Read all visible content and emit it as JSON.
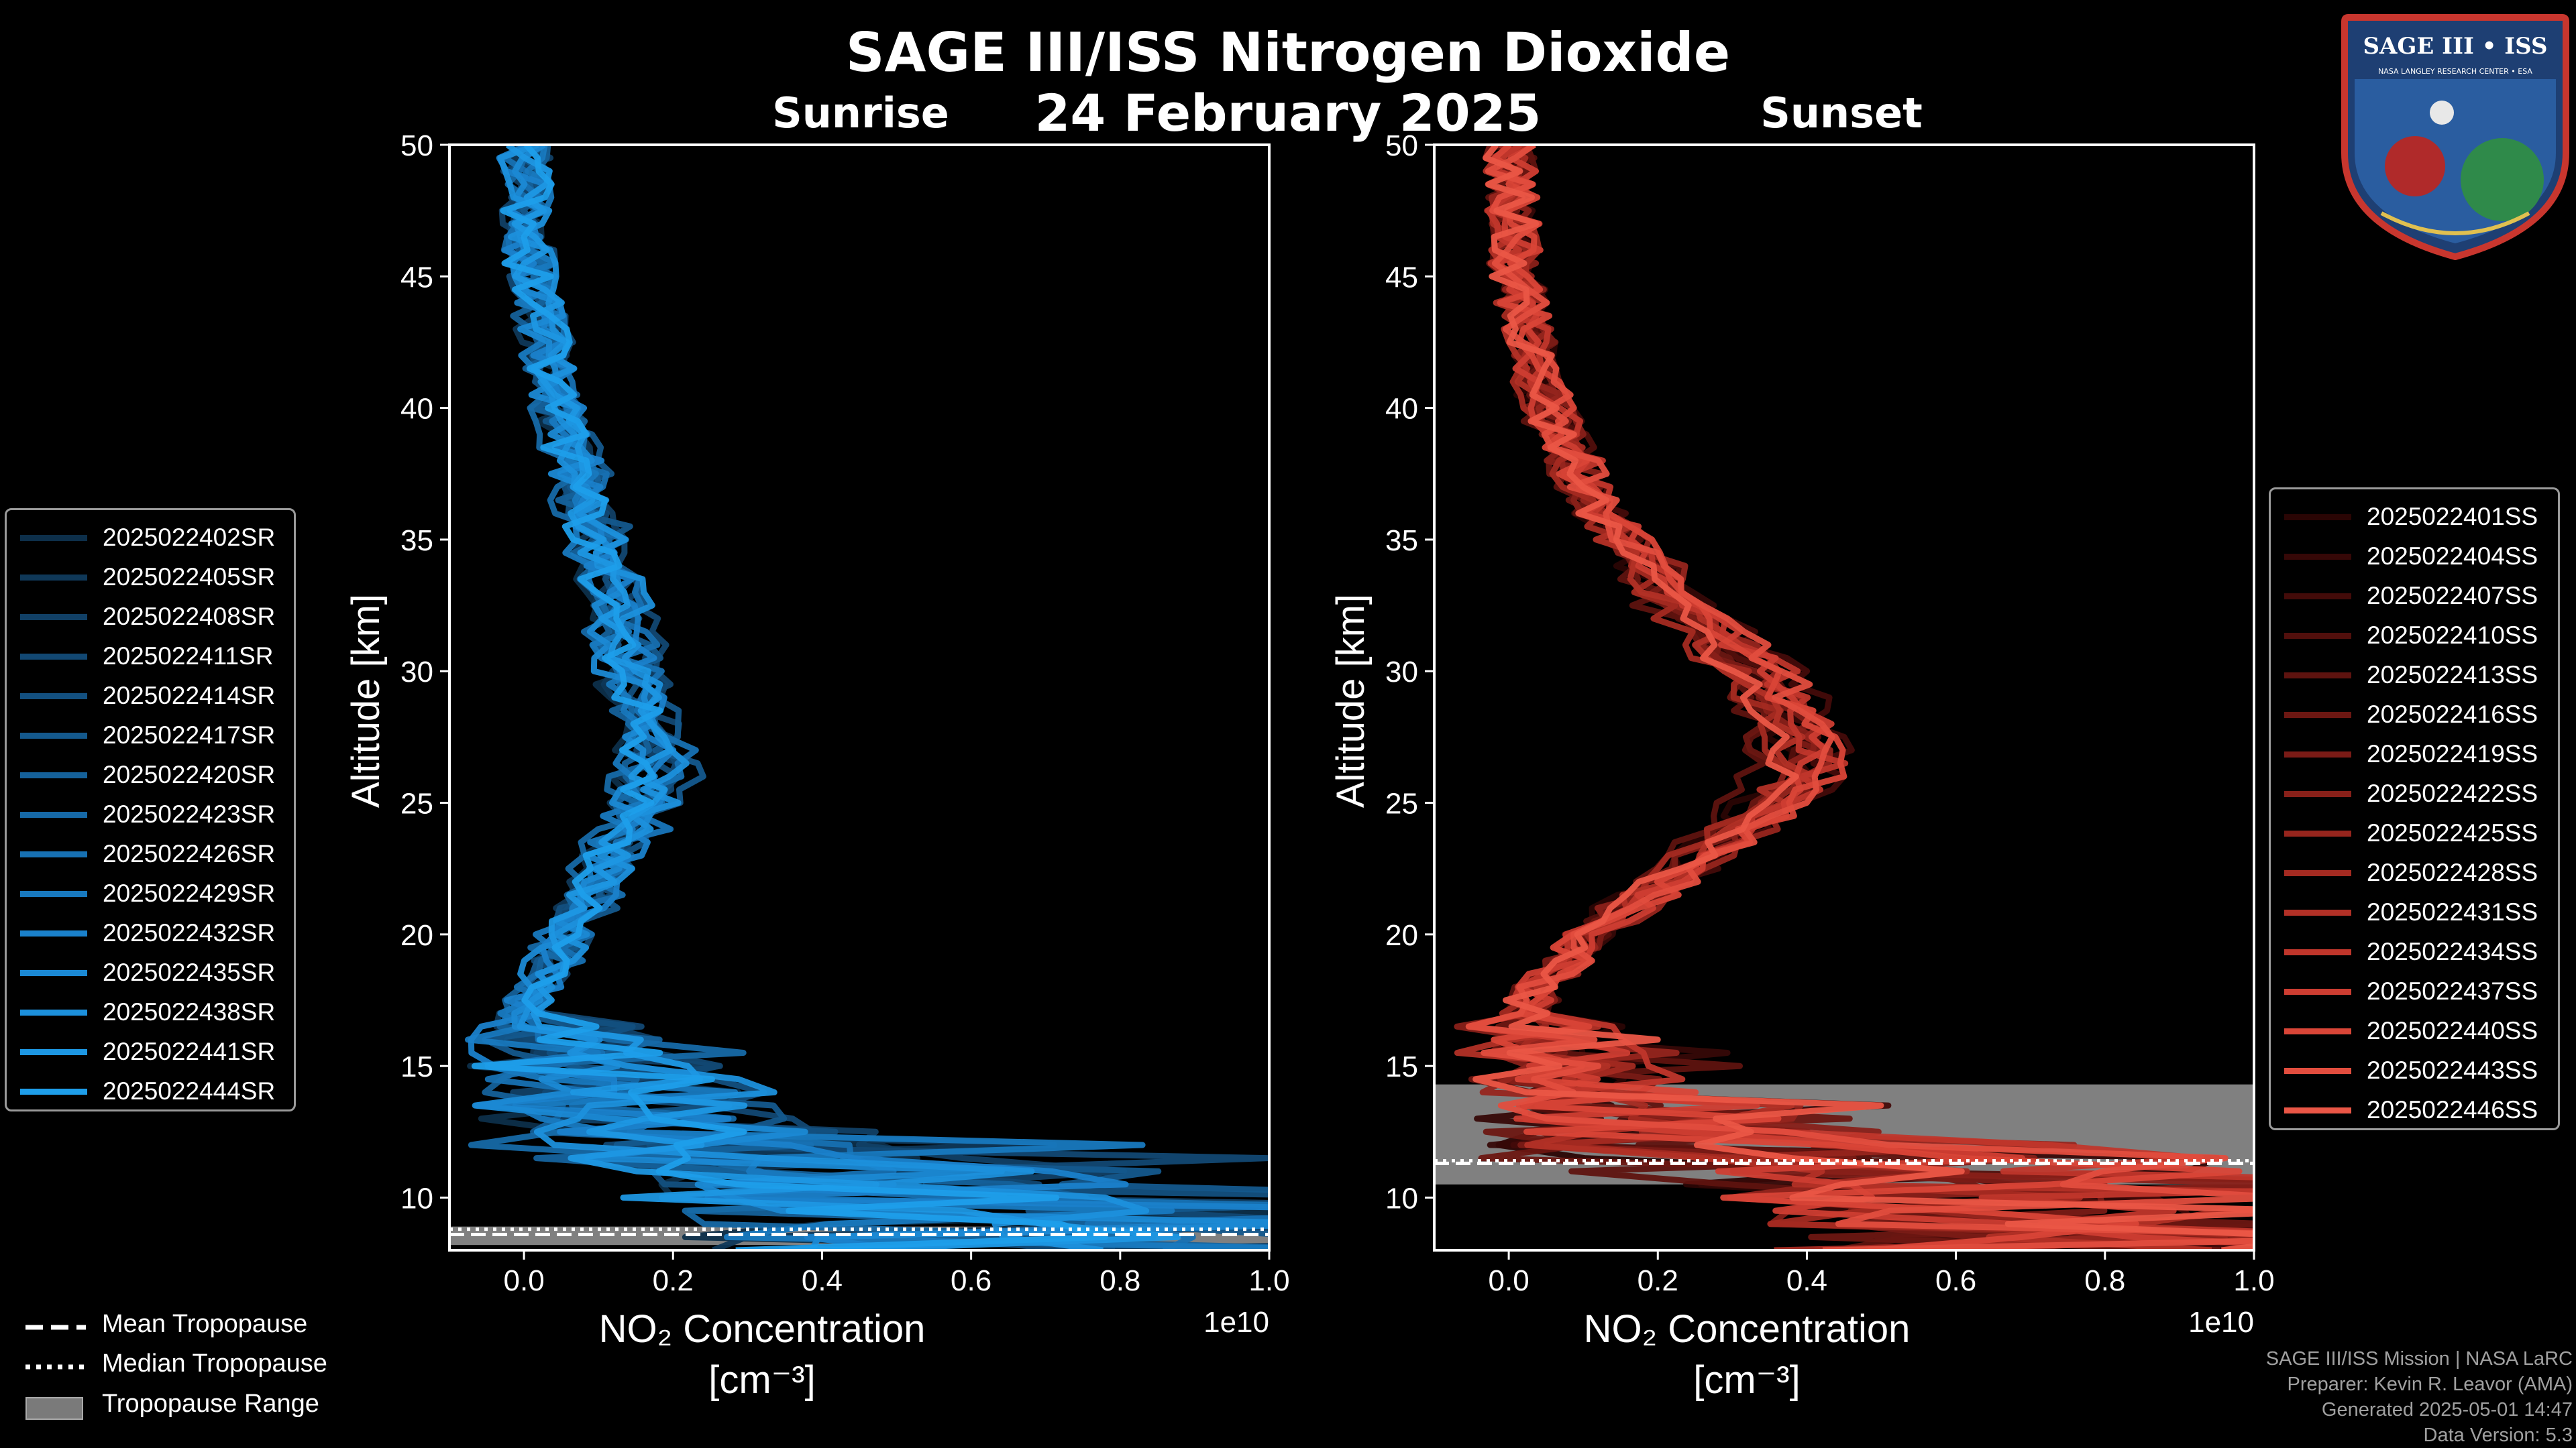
{
  "title": "SAGE III/ISS Nitrogen Dioxide",
  "date": "24 February 2025",
  "logo": {
    "text": "SAGE III • ISS",
    "sub": "NASA LANGLEY RESEARCH CENTER • ESA"
  },
  "chart_data": [
    {
      "type": "line",
      "name": "Sunrise",
      "title": "Sunrise",
      "xlabel": "NO₂ Concentration",
      "xunit": "[cm⁻³]",
      "ylabel": "Altitude [km]",
      "xlim": [
        -0.1,
        1.0
      ],
      "ylim": [
        8,
        50
      ],
      "x_scale_label": "1e10",
      "xticks": [
        0.0,
        0.2,
        0.4,
        0.6,
        0.8,
        1.0
      ],
      "xtick_labels": [
        "0.0",
        "0.2",
        "0.4",
        "0.6",
        "0.8",
        "1.0"
      ],
      "yticks": [
        10,
        15,
        20,
        25,
        30,
        35,
        40,
        45,
        50
      ],
      "ytick_labels": [
        "10",
        "15",
        "20",
        "25",
        "30",
        "35",
        "40",
        "45",
        "50"
      ],
      "tropopause": {
        "mean_km": 8.6,
        "median_km": 8.8,
        "range_km": [
          8.2,
          8.9
        ]
      },
      "profile": {
        "altitude": [
          50,
          45,
          40,
          35,
          32,
          30,
          28,
          26,
          25,
          22,
          20,
          17,
          15,
          13,
          12,
          11,
          10,
          9
        ],
        "no2": [
          0.0,
          0.01,
          0.05,
          0.1,
          0.13,
          0.15,
          0.17,
          0.18,
          0.17,
          0.1,
          0.06,
          0.0,
          0.06,
          0.15,
          0.28,
          0.42,
          0.58,
          0.75
        ]
      },
      "series": [
        {
          "name": "2025022402SR",
          "color": "#0d2f4a"
        },
        {
          "name": "2025022405SR",
          "color": "#0f3858"
        },
        {
          "name": "2025022408SR",
          "color": "#114066"
        },
        {
          "name": "2025022411SR",
          "color": "#124873"
        },
        {
          "name": "2025022414SR",
          "color": "#135080"
        },
        {
          "name": "2025022417SR",
          "color": "#14598d"
        },
        {
          "name": "2025022420SR",
          "color": "#15619a"
        },
        {
          "name": "2025022423SR",
          "color": "#1669a7"
        },
        {
          "name": "2025022426SR",
          "color": "#1771b3"
        },
        {
          "name": "2025022429SR",
          "color": "#1879bf"
        },
        {
          "name": "2025022432SR",
          "color": "#1a81cb"
        },
        {
          "name": "2025022435SR",
          "color": "#1b89d4"
        },
        {
          "name": "2025022438SR",
          "color": "#1c90dc"
        },
        {
          "name": "2025022441SR",
          "color": "#1d97e3"
        },
        {
          "name": "2025022444SR",
          "color": "#1e9eea"
        }
      ]
    },
    {
      "type": "line",
      "name": "Sunset",
      "title": "Sunset",
      "xlabel": "NO₂ Concentration",
      "xunit": "[cm⁻³]",
      "ylabel": "Altitude [km]",
      "xlim": [
        -0.1,
        1.0
      ],
      "ylim": [
        8,
        50
      ],
      "x_scale_label": "1e10",
      "xticks": [
        0.0,
        0.2,
        0.4,
        0.6,
        0.8,
        1.0
      ],
      "xtick_labels": [
        "0.0",
        "0.2",
        "0.4",
        "0.6",
        "0.8",
        "1.0"
      ],
      "yticks": [
        10,
        15,
        20,
        25,
        30,
        35,
        40,
        45,
        50
      ],
      "ytick_labels": [
        "10",
        "15",
        "20",
        "25",
        "30",
        "35",
        "40",
        "45",
        "50"
      ],
      "tropopause": {
        "mean_km": 11.3,
        "median_km": 11.4,
        "range_km": [
          10.5,
          14.3
        ]
      },
      "profile": {
        "altitude": [
          50,
          45,
          40,
          37,
          35,
          32,
          30,
          28,
          26,
          24,
          22,
          20,
          18,
          16,
          14,
          12,
          11,
          10,
          9
        ],
        "no2": [
          0.0,
          0.01,
          0.05,
          0.1,
          0.15,
          0.24,
          0.32,
          0.37,
          0.38,
          0.3,
          0.2,
          0.1,
          0.04,
          0.0,
          0.08,
          0.25,
          0.45,
          0.65,
          0.8
        ]
      },
      "series": [
        {
          "name": "2025022401SS",
          "color": "#2a0504"
        },
        {
          "name": "2025022404SS",
          "color": "#360807"
        },
        {
          "name": "2025022407SS",
          "color": "#430b09"
        },
        {
          "name": "2025022410SS",
          "color": "#510f0c"
        },
        {
          "name": "2025022413SS",
          "color": "#5e130f"
        },
        {
          "name": "2025022416SS",
          "color": "#6c1712"
        },
        {
          "name": "2025022419SS",
          "color": "#7a1b16"
        },
        {
          "name": "2025022422SS",
          "color": "#882019"
        },
        {
          "name": "2025022425SS",
          "color": "#96251d"
        },
        {
          "name": "2025022428SS",
          "color": "#a42a21"
        },
        {
          "name": "2025022431SS",
          "color": "#b23026"
        },
        {
          "name": "2025022434SS",
          "color": "#c0362b"
        },
        {
          "name": "2025022437SS",
          "color": "#cd3d31"
        },
        {
          "name": "2025022440SS",
          "color": "#d94537"
        },
        {
          "name": "2025022443SS",
          "color": "#e24d3e"
        },
        {
          "name": "2025022446SS",
          "color": "#ea5646"
        }
      ]
    }
  ],
  "tropopause_legend": [
    {
      "label": "Mean Tropopause",
      "style": "dashed"
    },
    {
      "label": "Median Tropopause",
      "style": "dotted"
    },
    {
      "label": "Tropopause Range",
      "style": "patch"
    }
  ],
  "credits": [
    "SAGE III/ISS Mission | NASA LaRC",
    "Preparer: Kevin R. Leavor (AMA)",
    "Generated 2025-05-01 14:47",
    "Data Version: 5.3"
  ]
}
